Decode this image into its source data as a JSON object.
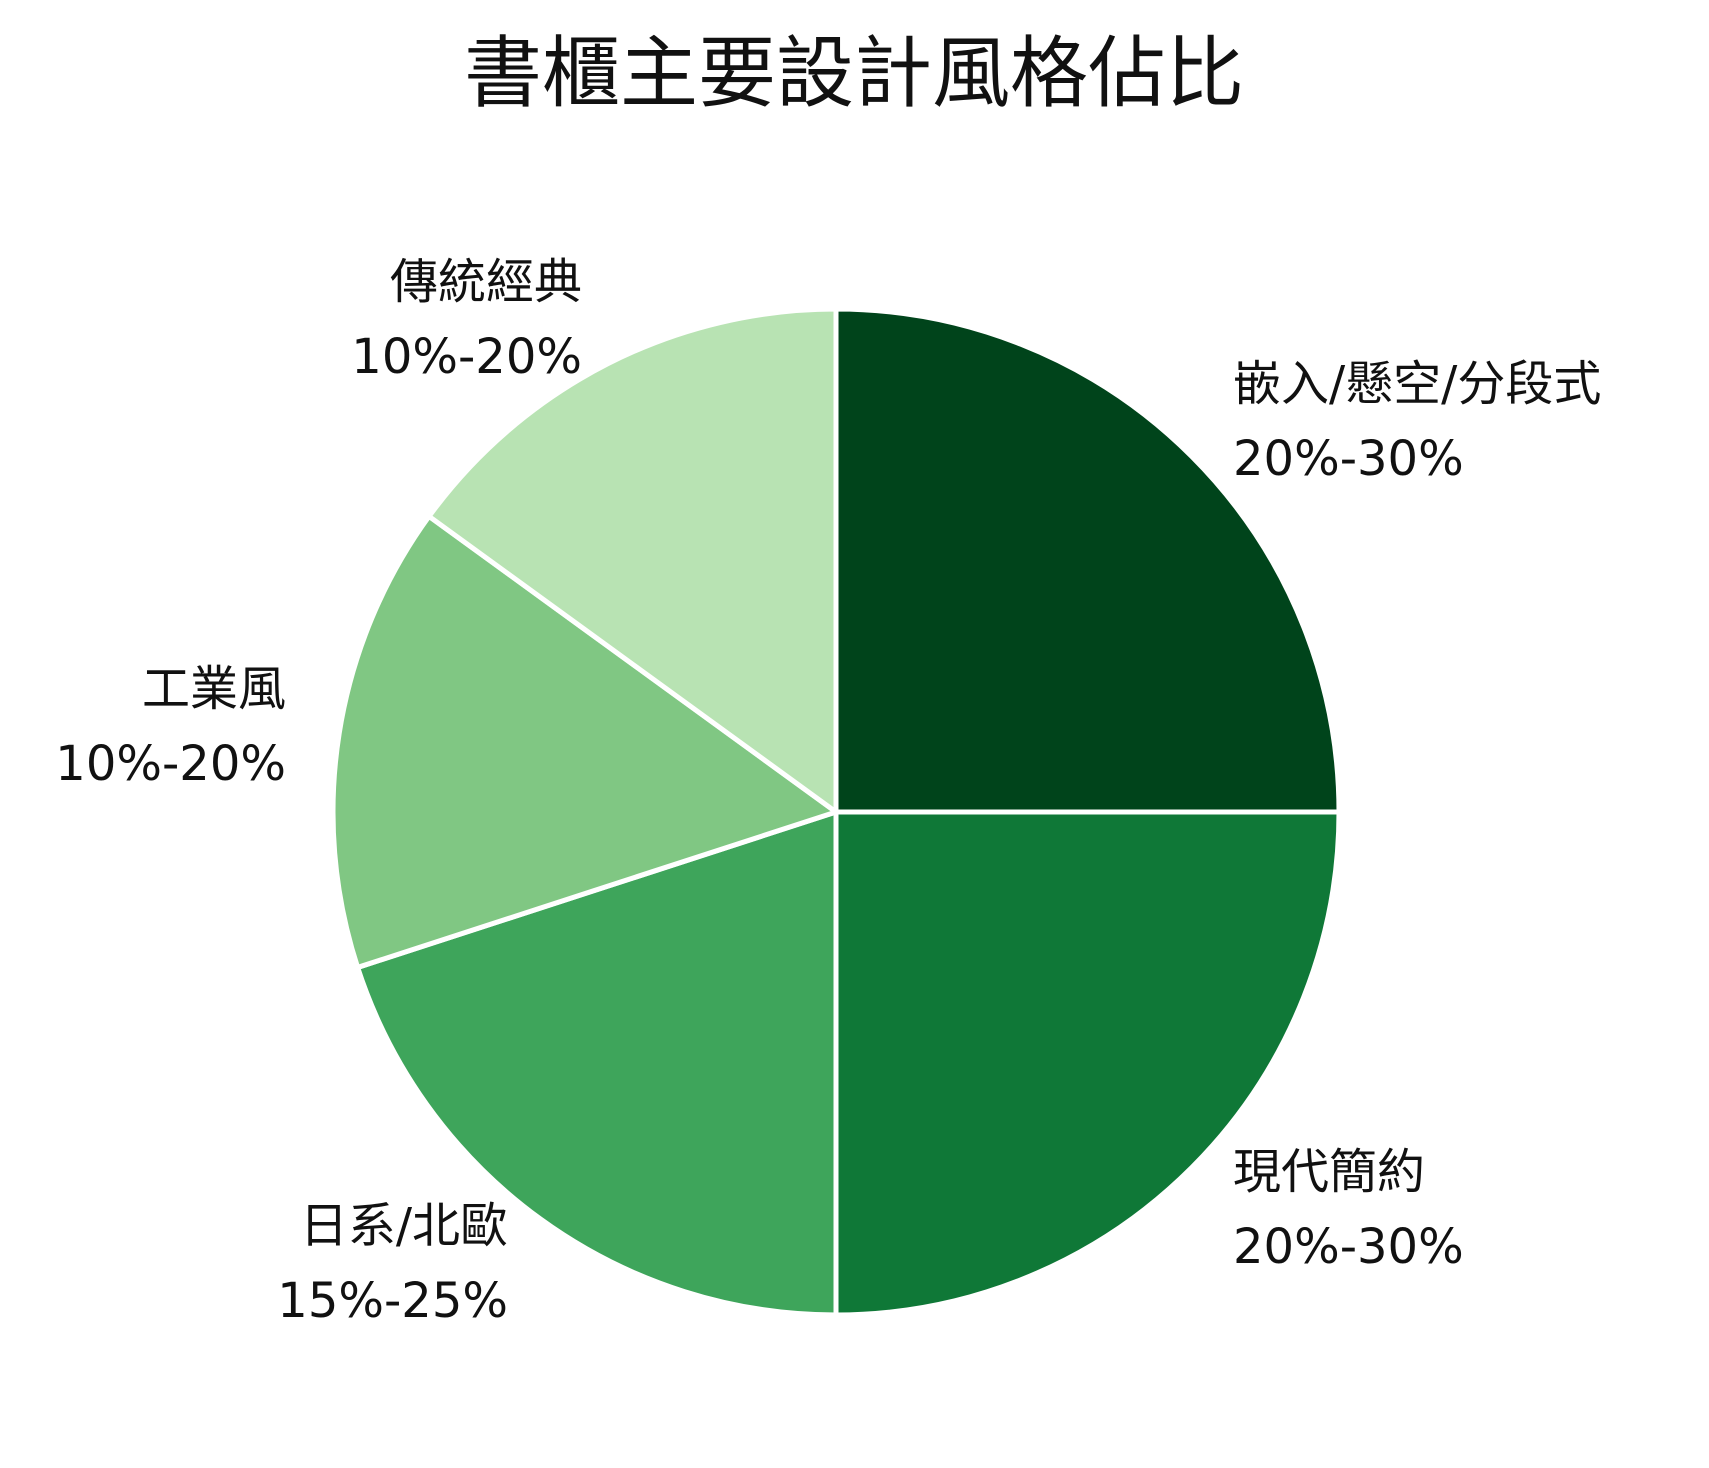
{
  "chart_data": {
    "type": "pie",
    "title": "書櫃主要設計風格佔比",
    "slices": [
      {
        "name": "嵌入/懸空/分段式",
        "range": "20%-30%",
        "value": 25,
        "color": "#00441b"
      },
      {
        "name": "現代簡約",
        "range": "20%-30%",
        "value": 25,
        "color": "#0f7837"
      },
      {
        "name": "日系/北歐",
        "range": "15%-25%",
        "value": 20,
        "color": "#3ea55b"
      },
      {
        "name": "工業風",
        "range": "10%-20%",
        "value": 15,
        "color": "#80c783"
      },
      {
        "name": "傳統經典",
        "range": "10%-20%",
        "value": 15,
        "color": "#b8e3b3"
      }
    ],
    "start_angle_deg": 90,
    "direction": "clockwise",
    "legend": "none"
  }
}
